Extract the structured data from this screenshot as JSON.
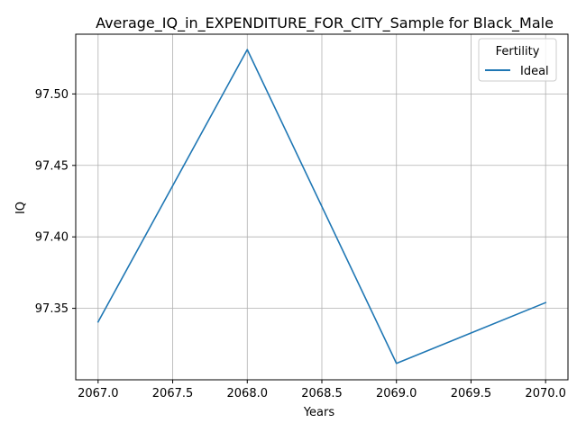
{
  "chart_data": {
    "type": "line",
    "title": "Average_IQ_in_EXPENDITURE_FOR_CITY_Sample for Black_Male",
    "xlabel": "Years",
    "ylabel": "IQ",
    "x": [
      2067,
      2068,
      2069,
      2070
    ],
    "series": [
      {
        "name": "Ideal",
        "color": "#1f77b4",
        "values": [
          97.3405,
          97.531,
          97.3115,
          97.354
        ]
      }
    ],
    "xlim": [
      2066.85,
      2070.15
    ],
    "ylim": [
      97.3,
      97.5418
    ],
    "xticks": [
      2067.0,
      2067.5,
      2068.0,
      2068.5,
      2069.0,
      2069.5,
      2070.0
    ],
    "xtick_labels": [
      "2067.0",
      "2067.5",
      "2068.0",
      "2068.5",
      "2069.0",
      "2069.5",
      "2070.0"
    ],
    "yticks": [
      97.35,
      97.4,
      97.45,
      97.5
    ],
    "ytick_labels": [
      "97.35",
      "97.40",
      "97.45",
      "97.50"
    ],
    "grid": true,
    "legend": {
      "title": "Fertility",
      "placement": "top-right"
    }
  }
}
